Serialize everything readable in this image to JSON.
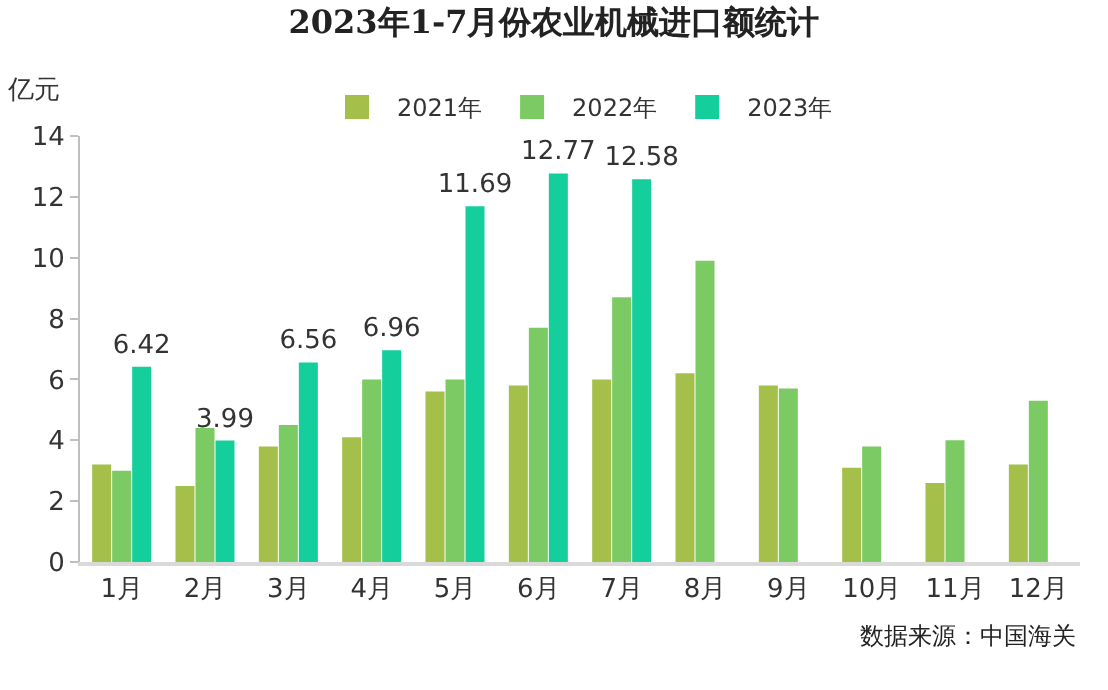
{
  "chart_data": {
    "type": "bar",
    "title": "2023年1-7月份农业机械进口额统计",
    "ylabel": "亿元",
    "categories": [
      "1月",
      "2月",
      "3月",
      "4月",
      "5月",
      "6月",
      "7月",
      "8月",
      "9月",
      "10月",
      "11月",
      "12月"
    ],
    "series": [
      {
        "name": "2021年",
        "color": "#a5c04a",
        "values": [
          3.2,
          2.5,
          3.8,
          4.1,
          5.6,
          5.8,
          6.0,
          6.2,
          5.8,
          3.1,
          2.6,
          3.2
        ]
      },
      {
        "name": "2022年",
        "color": "#7cca63",
        "values": [
          3.0,
          4.4,
          4.5,
          6.0,
          6.0,
          7.7,
          8.7,
          9.9,
          5.7,
          3.8,
          4.0,
          5.3
        ]
      },
      {
        "name": "2023年",
        "color": "#14cf9c",
        "values": [
          6.42,
          3.99,
          6.56,
          6.96,
          11.69,
          12.77,
          12.58,
          null,
          null,
          null,
          null,
          null
        ],
        "value_labels": [
          "6.42",
          "3.99",
          "6.56",
          "6.96",
          "11.69",
          "12.77",
          "12.58",
          null,
          null,
          null,
          null,
          null
        ]
      }
    ],
    "ylim": [
      0,
      14
    ],
    "yticks": [
      0,
      2,
      4,
      6,
      8,
      10,
      12,
      14
    ],
    "grid": false,
    "legend": "top",
    "annotations": [
      "数据来源：中国海关"
    ]
  }
}
